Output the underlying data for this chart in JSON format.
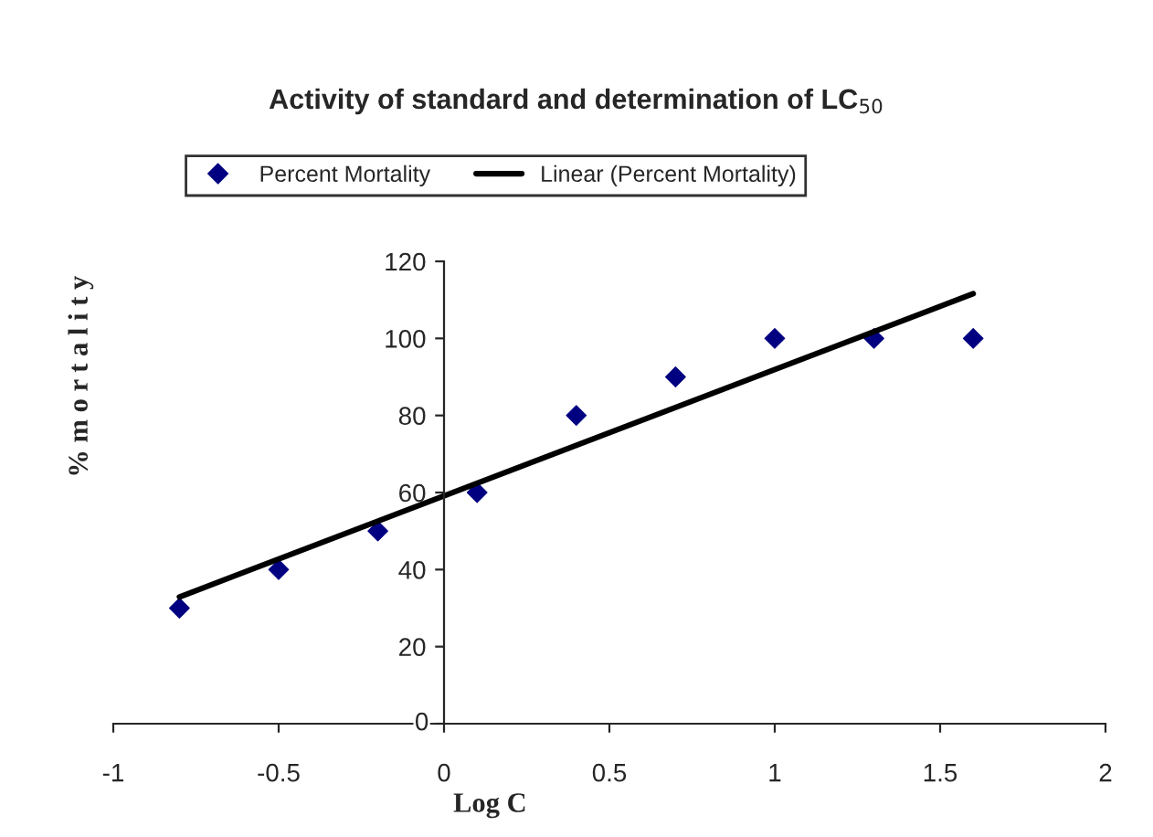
{
  "chart_data": {
    "type": "scatter",
    "title": "Activity of standard and determination of LC$_{50}$",
    "xlabel": "Log C",
    "ylabel": "% m o r t a l i t y",
    "series": [
      {
        "name": "Percent Mortality",
        "type": "scatter",
        "color": "#000080",
        "marker": "diamond",
        "x": [
          -0.8,
          -0.5,
          -0.2,
          0.1,
          0.4,
          0.7,
          1.0,
          1.3,
          1.6
        ],
        "values": [
          30,
          40,
          50,
          60,
          80,
          90,
          100,
          100,
          100
        ]
      },
      {
        "name": "Linear (Percent Mortality)",
        "type": "line",
        "color": "#000000",
        "marker": "none",
        "line_style": "solid",
        "x": [
          -0.8,
          1.6
        ],
        "values": [
          32.9,
          111.6
        ]
      }
    ],
    "xlim": [
      -1,
      2
    ],
    "xticks": [
      -1,
      -0.5,
      0,
      0.5,
      1,
      1.5,
      2
    ],
    "ylim": [
      0,
      120
    ],
    "yticks": [
      0,
      20,
      40,
      60,
      80,
      100,
      120
    ],
    "grid": false,
    "legend": "top"
  }
}
